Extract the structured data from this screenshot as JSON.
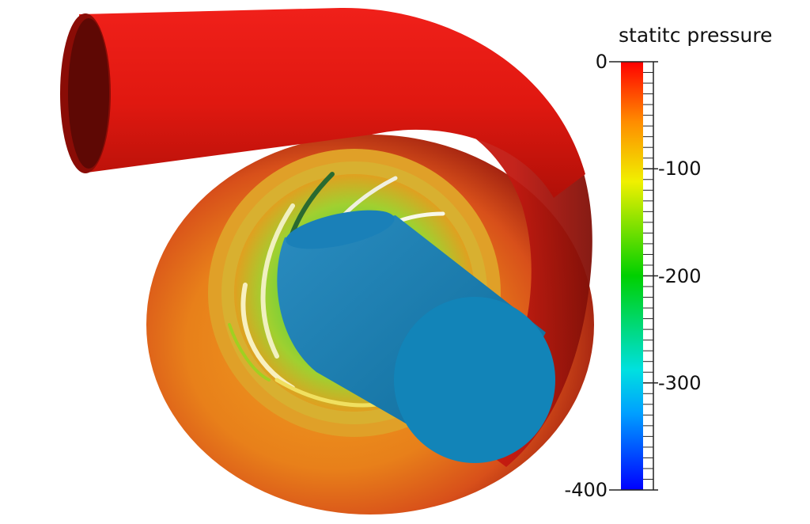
{
  "legend": {
    "title": "statitc pressure",
    "ticks": [
      {
        "label": "0",
        "value": 0
      },
      {
        "label": "-100",
        "value": -100
      },
      {
        "label": "-200",
        "value": -200
      },
      {
        "label": "-300",
        "value": -300
      },
      {
        "label": "-400",
        "value": -400
      }
    ],
    "range": [
      -400,
      0
    ],
    "colormap": [
      "#0000ff",
      "#00c8ff",
      "#00e000",
      "#ffff00",
      "#ff8c00",
      "#ff0000"
    ]
  },
  "colors": {
    "inlet_pipe": "#e01a0a",
    "volute": "#d83a10",
    "volute_inner": "#e8901a",
    "impeller_blades": "#7ec835",
    "shaft": "#0f7fb0",
    "shaft_cap": "#1a8cc0"
  }
}
